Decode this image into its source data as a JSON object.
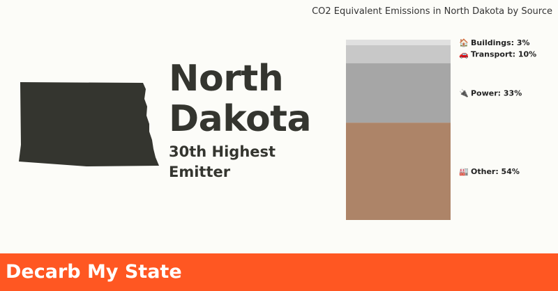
{
  "state": {
    "name_line1": "North",
    "name_line2": "Dakota",
    "rank_text": "30th Highest Emitter"
  },
  "chart_data": {
    "type": "bar",
    "stacked": true,
    "title": "CO2 Equivalent Emissions in North Dakota by Source",
    "unit": "%",
    "series": [
      {
        "name": "Other",
        "value": 54,
        "label": "Other: 54%",
        "icon": "factory-icon",
        "icon_glyph": "🏭",
        "color": "#ad8468"
      },
      {
        "name": "Power",
        "value": 33,
        "label": "Power: 33%",
        "icon": "plug-icon",
        "icon_glyph": "🔌",
        "color": "#a6a6a6"
      },
      {
        "name": "Transport",
        "value": 10,
        "label": "Transport: 10%",
        "icon": "car-icon",
        "icon_glyph": "🚗",
        "color": "#c8c8c8"
      },
      {
        "name": "Buildings",
        "value": 3,
        "label": "Buildings: 3%",
        "icon": "house-icon",
        "icon_glyph": "🏠",
        "color": "#e0e0e0"
      }
    ]
  },
  "footer": {
    "brand": "Decarb My State"
  },
  "colors": {
    "accent": "#ff5722",
    "state_fill": "#34352f",
    "background": "#fcfcf8"
  }
}
